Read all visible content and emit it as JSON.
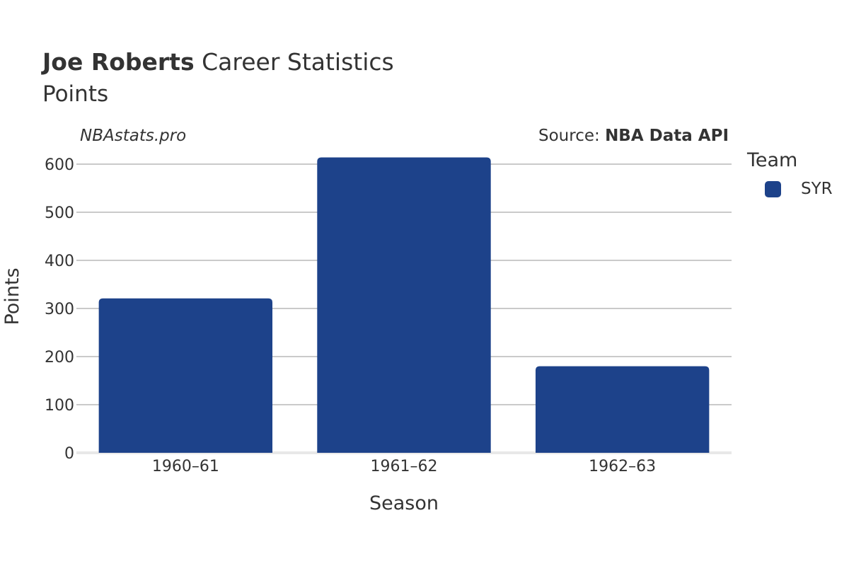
{
  "header": {
    "player_name": "Joe Roberts",
    "title_suffix": "Career Statistics",
    "subtitle": "Points"
  },
  "brand": "NBAstats.pro",
  "source": {
    "prefix": "Source: ",
    "name": "NBA Data API"
  },
  "legend": {
    "title": "Team",
    "items": [
      {
        "label": "SYR",
        "color": "#1d428a"
      }
    ]
  },
  "chart_data": {
    "type": "bar",
    "categories": [
      "1960–61",
      "1961–62",
      "1962–63"
    ],
    "series": [
      {
        "name": "SYR",
        "values": [
          321,
          614,
          180
        ],
        "color": "#1d428a"
      }
    ],
    "xlabel": "Season",
    "ylabel": "Points",
    "ylim": [
      0,
      620
    ],
    "yticks": [
      0,
      100,
      200,
      300,
      400,
      500,
      600
    ],
    "grid": true,
    "legend_position": "right"
  }
}
